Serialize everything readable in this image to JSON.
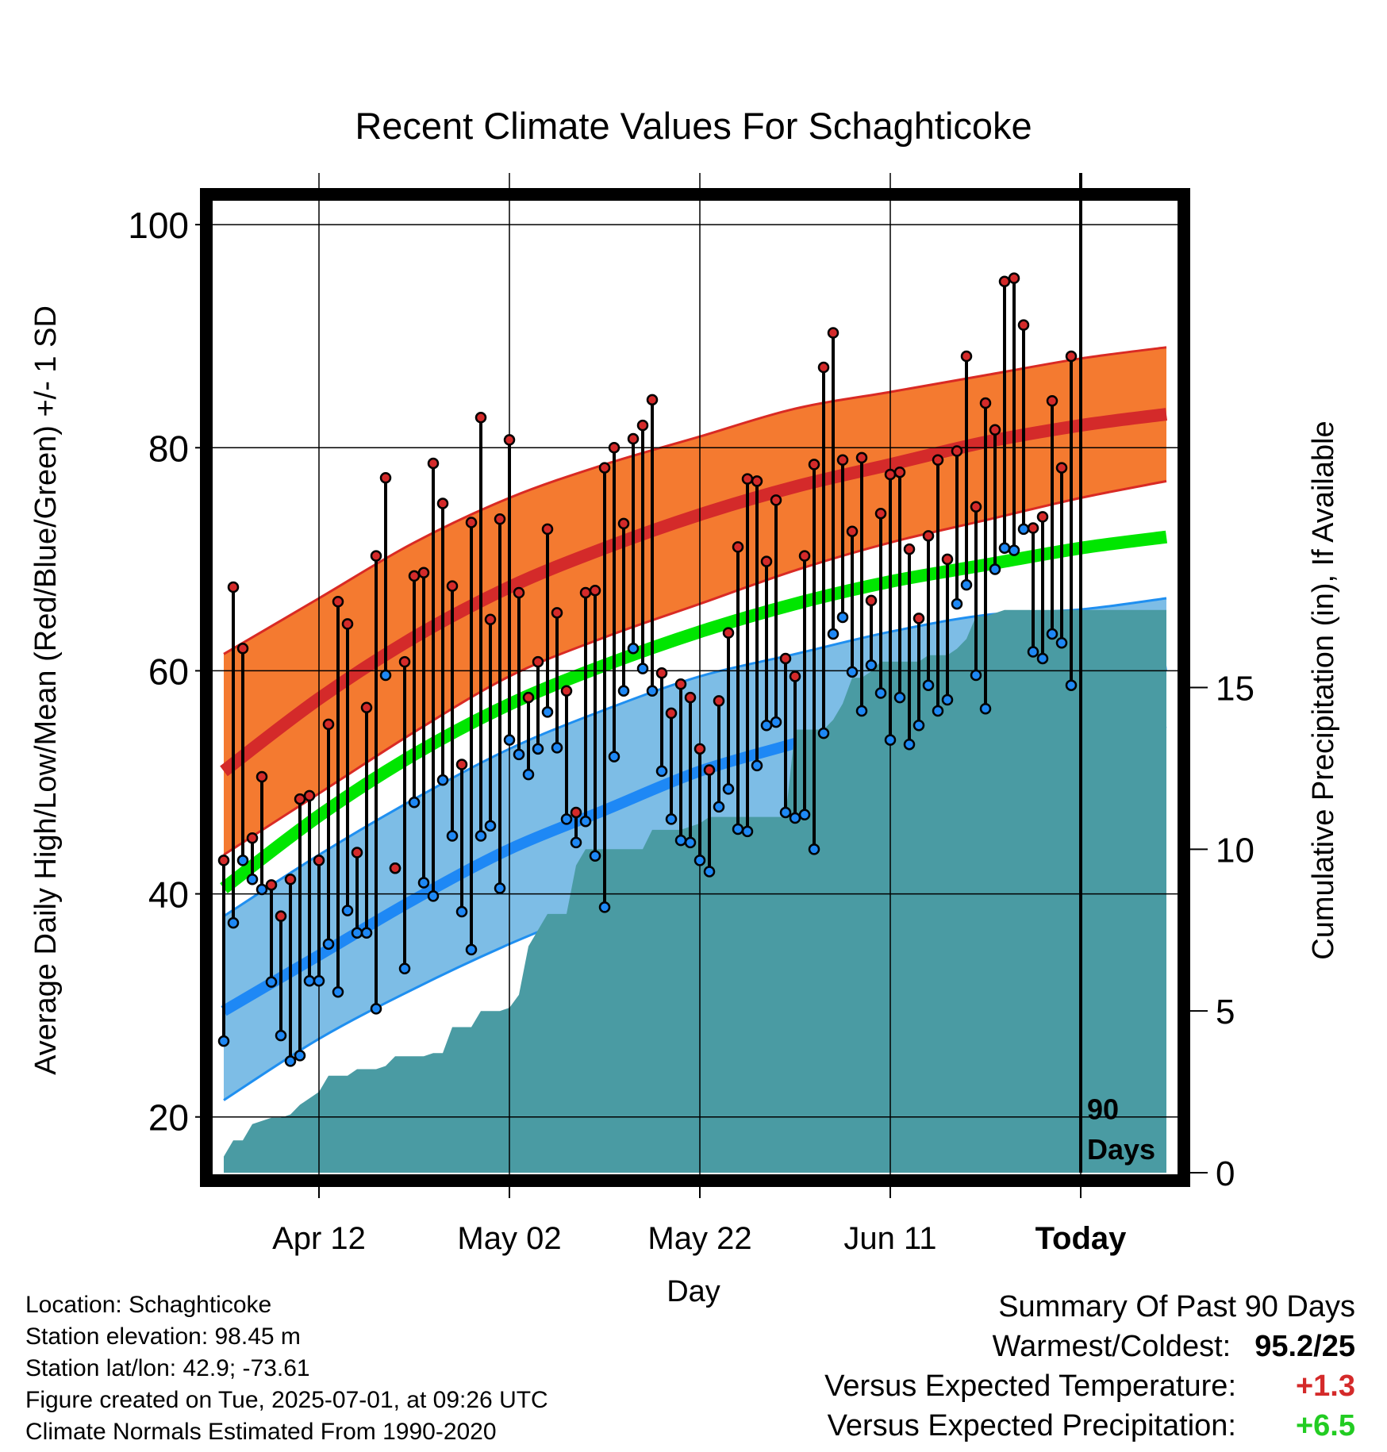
{
  "chart_data": {
    "type": "line",
    "title": "Recent Climate Values For Schaghticoke",
    "xlabel": "Day",
    "ylabel": "Average Daily High/Low/Mean (Red/Blue/Green) +/- 1 SD",
    "y2label": "Cumulative Precipitation (in), If Available",
    "ylim": [
      15,
      102
    ],
    "y2lim": [
      0,
      30
    ],
    "y_ticks": [
      "20",
      "40",
      "60",
      "80",
      "100"
    ],
    "y2_ticks": [
      "0",
      "5",
      "10",
      "15"
    ],
    "x_tick_labels": [
      "Apr 12",
      "May 02",
      "May 22",
      "Jun 11",
      "Today"
    ],
    "x_ticks": [
      10,
      30,
      50,
      70,
      90
    ],
    "xlim": [
      -1,
      100
    ],
    "today_marker": {
      "x": 90,
      "label_line1": "90",
      "label_line2": "Days"
    },
    "grid": true,
    "normals": {
      "x": [
        0,
        10,
        20,
        30,
        40,
        50,
        60,
        70,
        80,
        90,
        99
      ],
      "high_mean": [
        51,
        57.5,
        63,
        67.5,
        71,
        74,
        76.5,
        78.5,
        80.5,
        82,
        83
      ],
      "high_upper": [
        61.5,
        66.5,
        71.5,
        75.5,
        78.5,
        81,
        83.5,
        85,
        86.5,
        88,
        89
      ],
      "high_lower": [
        43.5,
        49,
        54.5,
        59.5,
        63,
        66,
        69,
        71.5,
        73.5,
        75.5,
        77
      ],
      "mean": [
        40.5,
        47,
        52.5,
        57,
        60.5,
        63.5,
        66,
        68,
        69.5,
        71,
        72
      ],
      "low_mean": [
        29.5,
        34.5,
        39.5,
        44,
        47.5,
        51,
        53.5,
        56,
        57.5,
        59.5,
        60.5
      ],
      "low_upper": [
        38,
        43.5,
        48.5,
        53,
        56.5,
        59.5,
        61.5,
        63.5,
        65,
        65.5,
        66.5
      ],
      "low_lower": [
        21.5,
        27,
        31.5,
        35.5,
        39,
        42.5,
        45.5,
        48.5,
        51,
        53,
        55
      ]
    },
    "series": [
      {
        "name": "High",
        "x": [
          0,
          1,
          2,
          3,
          4,
          5,
          6,
          7,
          8,
          9,
          10,
          11,
          12,
          13,
          14,
          15,
          16,
          17,
          18,
          19,
          20,
          21,
          22,
          23,
          24,
          25,
          26,
          27,
          28,
          29,
          30,
          31,
          32,
          33,
          34,
          35,
          36,
          37,
          38,
          39,
          40,
          41,
          42,
          43,
          44,
          45,
          46,
          47,
          48,
          49,
          50,
          51,
          52,
          53,
          54,
          55,
          56,
          57,
          58,
          59,
          60,
          61,
          62,
          63,
          64,
          65,
          66,
          67,
          68,
          69,
          70,
          71,
          72,
          73,
          74,
          75,
          76,
          77,
          78,
          79,
          80,
          81,
          82,
          83,
          84,
          85,
          86,
          87,
          88,
          89
        ],
        "values": [
          43,
          67.5,
          62,
          45,
          50.5,
          40.8,
          38,
          41.3,
          48.5,
          48.8,
          43,
          55.2,
          66.2,
          64.2,
          43.7,
          56.7,
          70.3,
          77.3,
          42.3,
          60.8,
          68.5,
          68.8,
          78.6,
          75,
          67.6,
          51.6,
          73.3,
          82.7,
          64.6,
          73.6,
          80.7,
          67,
          57.6,
          60.8,
          72.7,
          65.2,
          58.2,
          47.3,
          67,
          67.2,
          78.2,
          80,
          73.2,
          80.8,
          82,
          84.3,
          59.8,
          56.2,
          58.8,
          57.6,
          53,
          51.1,
          57.3,
          63.4,
          71.1,
          77.2,
          77,
          69.8,
          75.3,
          61.1,
          59.5,
          70.3,
          78.5,
          87.2,
          90.3,
          78.9,
          72.5,
          79.1,
          66.3,
          74.1,
          77.6,
          77.8,
          70.9,
          64.7,
          72.1,
          78.9,
          70,
          79.7,
          88.2,
          74.7,
          84,
          81.6,
          94.9,
          95.2,
          91,
          72.8,
          73.8,
          84.2,
          78.2,
          88.2
        ]
      },
      {
        "name": "Low",
        "x": [
          0,
          1,
          2,
          3,
          4,
          5,
          6,
          7,
          8,
          9,
          10,
          11,
          12,
          13,
          14,
          15,
          16,
          17,
          18,
          19,
          20,
          21,
          22,
          23,
          24,
          25,
          26,
          27,
          28,
          29,
          30,
          31,
          32,
          33,
          34,
          35,
          36,
          37,
          38,
          39,
          40,
          41,
          42,
          43,
          44,
          45,
          46,
          47,
          48,
          49,
          50,
          51,
          52,
          53,
          54,
          55,
          56,
          57,
          58,
          59,
          60,
          61,
          62,
          63,
          64,
          65,
          66,
          67,
          68,
          69,
          70,
          71,
          72,
          73,
          74,
          75,
          76,
          77,
          78,
          79,
          80,
          81,
          82,
          83,
          84,
          85,
          86,
          87,
          88,
          89
        ],
        "values": [
          26.8,
          37.4,
          43,
          41.3,
          40.4,
          32.1,
          27.3,
          25,
          25.5,
          32.2,
          32.2,
          35.5,
          31.2,
          38.5,
          36.5,
          36.5,
          29.7,
          59.6,
          42.3,
          33.3,
          48.2,
          41,
          39.8,
          50.2,
          45.2,
          38.4,
          35,
          45.2,
          46.1,
          40.5,
          53.8,
          52.5,
          50.7,
          53,
          56.3,
          53.1,
          46.7,
          44.6,
          46.5,
          43.4,
          38.8,
          52.3,
          58.2,
          62,
          60.2,
          58.2,
          51,
          46.7,
          44.8,
          44.6,
          43,
          42,
          47.8,
          49.4,
          45.8,
          45.6,
          51.5,
          55.1,
          55.4,
          47.3,
          46.8,
          47.1,
          44,
          54.4,
          63.3,
          64.8,
          59.9,
          56.4,
          60.5,
          58,
          53.8,
          57.6,
          53.4,
          55.1,
          58.7,
          56.4,
          57.4,
          66,
          67.7,
          59.6,
          56.6,
          69.1,
          71,
          70.8,
          72.7,
          61.7,
          61.1,
          63.3,
          62.5,
          58.7
        ]
      }
    ],
    "precipitation": {
      "name": "Cumulative Precipitation",
      "x": [
        0,
        1,
        2,
        3,
        4,
        5,
        6,
        7,
        8,
        9,
        10,
        11,
        12,
        13,
        14,
        15,
        16,
        17,
        18,
        19,
        20,
        21,
        22,
        23,
        24,
        25,
        26,
        27,
        28,
        29,
        30,
        31,
        32,
        33,
        34,
        35,
        36,
        37,
        38,
        39,
        40,
        41,
        42,
        43,
        44,
        45,
        46,
        47,
        48,
        49,
        50,
        51,
        52,
        53,
        54,
        55,
        56,
        57,
        58,
        59,
        60,
        61,
        62,
        63,
        64,
        65,
        66,
        67,
        68,
        69,
        70,
        71,
        72,
        73,
        74,
        75,
        76,
        77,
        78,
        79,
        80,
        81,
        82,
        83,
        84,
        85,
        86,
        87,
        88,
        89,
        99
      ],
      "values": [
        0.5,
        1.0,
        1.0,
        1.5,
        1.6,
        1.7,
        1.7,
        1.8,
        2.1,
        2.3,
        2.5,
        3.0,
        3.0,
        3.0,
        3.2,
        3.2,
        3.2,
        3.3,
        3.6,
        3.6,
        3.6,
        3.6,
        3.7,
        3.7,
        4.5,
        4.5,
        4.5,
        5.0,
        5.0,
        5.0,
        5.1,
        5.5,
        7.0,
        7.5,
        8.0,
        8.0,
        8.0,
        9.5,
        10.0,
        10.0,
        10.0,
        10.0,
        10.0,
        10.0,
        10.0,
        10.6,
        10.6,
        10.6,
        10.6,
        10.7,
        10.8,
        11.0,
        11.0,
        11.0,
        11.0,
        11.0,
        11.0,
        11.0,
        11.0,
        11.0,
        13.7,
        13.7,
        13.7,
        13.7,
        14.0,
        14.5,
        15.3,
        15.3,
        15.5,
        15.8,
        15.8,
        15.8,
        15.8,
        15.8,
        16.0,
        16.0,
        16.0,
        16.2,
        16.5,
        17.2,
        17.2,
        17.3,
        17.4,
        17.4,
        17.4,
        17.4,
        17.4,
        17.4,
        17.4,
        17.4,
        17.4
      ]
    }
  },
  "metadata": {
    "location": "Location: Schaghticoke",
    "elevation": "Station elevation: 98.45 m",
    "latlon": "Station lat/lon: 42.9; -73.61",
    "created": "Figure created on Tue, 2025-07-01, at 09:26 UTC",
    "normals_note": "Climate Normals Estimated From 1990-2020"
  },
  "summary": {
    "heading": "Summary Of Past 90 Days",
    "warm_cold_label": "Warmest/Coldest:",
    "warm_cold_value": "95.2/25",
    "temp_label": "Versus Expected Temperature:",
    "temp_value": "+1.3",
    "precip_label": "Versus Expected Precipitation:",
    "precip_value": "+6.5"
  },
  "colors": {
    "high_band": "#f47a30",
    "high_band_edge": "#d92a24",
    "high_mean": "#d42a2a",
    "mean": "#00e600",
    "low_band": "#7dbde6",
    "low_band_edge": "#1f8ff0",
    "low_mean": "#1e88f5",
    "precip": "#4a9ba3",
    "high_dot": "#d42a2a",
    "low_dot": "#1e88f5",
    "temp_delta": "#d42a2a",
    "precip_delta": "#22cc22"
  }
}
